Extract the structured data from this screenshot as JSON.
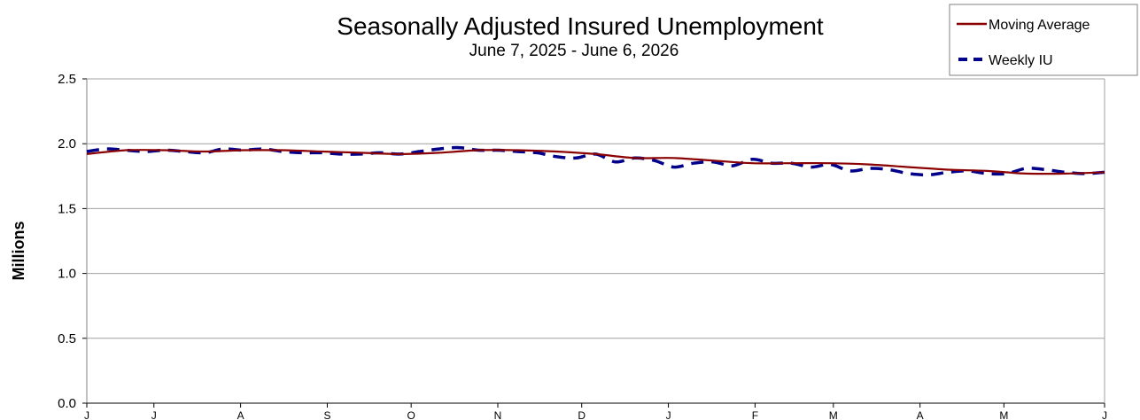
{
  "chart_data": {
    "type": "line",
    "title": "Seasonally Adjusted Insured Unemployment",
    "subtitle": "June 7, 2025 - June 6, 2026",
    "ylabel": "Millions",
    "xlabel": "",
    "ylim": [
      0,
      2.5
    ],
    "yticks": [
      "0.0",
      "0.5",
      "1.0",
      "1.5",
      "2.0",
      "2.5"
    ],
    "xlim": [
      "2025-06-07",
      "2026-06-06"
    ],
    "x_tick_labels": [
      {
        "label": "J",
        "date": "2025-06-07"
      },
      {
        "label": "J",
        "date": "2025-07-01"
      },
      {
        "label": "A",
        "date": "2025-08-01"
      },
      {
        "label": "S",
        "date": "2025-09-01"
      },
      {
        "label": "O",
        "date": "2025-10-01"
      },
      {
        "label": "N",
        "date": "2025-11-01"
      },
      {
        "label": "D",
        "date": "2025-12-01"
      },
      {
        "label": "J",
        "date": "2026-01-01"
      },
      {
        "label": "F",
        "date": "2026-02-01"
      },
      {
        "label": "M",
        "date": "2026-03-01"
      },
      {
        "label": "A",
        "date": "2026-04-01"
      },
      {
        "label": "M",
        "date": "2026-05-01"
      },
      {
        "label": "J",
        "date": "2026-06-06"
      }
    ],
    "grid": true,
    "legend_position": "top-right",
    "colors": {
      "moving_average": "#8b0000",
      "weekly": "#00008b",
      "grid": "#a0a0a0"
    },
    "series": [
      {
        "name": "Moving Average",
        "style": "solid",
        "x": [
          "2025-06-07",
          "2025-06-21",
          "2025-07-05",
          "2025-07-19",
          "2025-08-02",
          "2025-08-16",
          "2025-08-30",
          "2025-09-13",
          "2025-09-27",
          "2025-10-11",
          "2025-10-25",
          "2025-11-08",
          "2025-11-22",
          "2025-12-06",
          "2025-12-20",
          "2026-01-03",
          "2026-01-17",
          "2026-01-31",
          "2026-02-14",
          "2026-02-28",
          "2026-03-14",
          "2026-03-28",
          "2026-04-11",
          "2026-04-25",
          "2026-05-09",
          "2026-05-23",
          "2026-06-06"
        ],
        "values": [
          1.92,
          1.95,
          1.95,
          1.94,
          1.95,
          1.95,
          1.94,
          1.93,
          1.92,
          1.93,
          1.95,
          1.95,
          1.94,
          1.92,
          1.89,
          1.89,
          1.87,
          1.85,
          1.85,
          1.85,
          1.84,
          1.82,
          1.8,
          1.79,
          1.77,
          1.77,
          1.78
        ]
      },
      {
        "name": "Weekly IU",
        "style": "dashed",
        "x": [
          "2025-06-07",
          "2025-06-14",
          "2025-06-21",
          "2025-06-28",
          "2025-07-05",
          "2025-07-12",
          "2025-07-19",
          "2025-07-26",
          "2025-08-02",
          "2025-08-09",
          "2025-08-16",
          "2025-08-23",
          "2025-08-30",
          "2025-09-06",
          "2025-09-13",
          "2025-09-20",
          "2025-09-27",
          "2025-10-04",
          "2025-10-11",
          "2025-10-18",
          "2025-10-25",
          "2025-11-01",
          "2025-11-08",
          "2025-11-15",
          "2025-11-22",
          "2025-11-29",
          "2025-12-06",
          "2025-12-13",
          "2025-12-20",
          "2025-12-27",
          "2026-01-03",
          "2026-01-10",
          "2026-01-17",
          "2026-01-24",
          "2026-01-31",
          "2026-02-07",
          "2026-02-14",
          "2026-02-21",
          "2026-02-28",
          "2026-03-07",
          "2026-03-14",
          "2026-03-21",
          "2026-03-28",
          "2026-04-04",
          "2026-04-11",
          "2026-04-18",
          "2026-04-25",
          "2026-05-02",
          "2026-05-09",
          "2026-05-16",
          "2026-05-23",
          "2026-05-30",
          "2026-06-06"
        ],
        "values": [
          1.94,
          1.96,
          1.95,
          1.94,
          1.95,
          1.94,
          1.93,
          1.96,
          1.95,
          1.96,
          1.94,
          1.93,
          1.93,
          1.92,
          1.92,
          1.93,
          1.92,
          1.94,
          1.96,
          1.97,
          1.95,
          1.95,
          1.94,
          1.93,
          1.9,
          1.89,
          1.92,
          1.86,
          1.89,
          1.87,
          1.82,
          1.85,
          1.86,
          1.83,
          1.88,
          1.85,
          1.85,
          1.82,
          1.84,
          1.79,
          1.81,
          1.8,
          1.77,
          1.76,
          1.78,
          1.79,
          1.77,
          1.77,
          1.81,
          1.8,
          1.78,
          1.77,
          1.78
        ]
      }
    ]
  }
}
